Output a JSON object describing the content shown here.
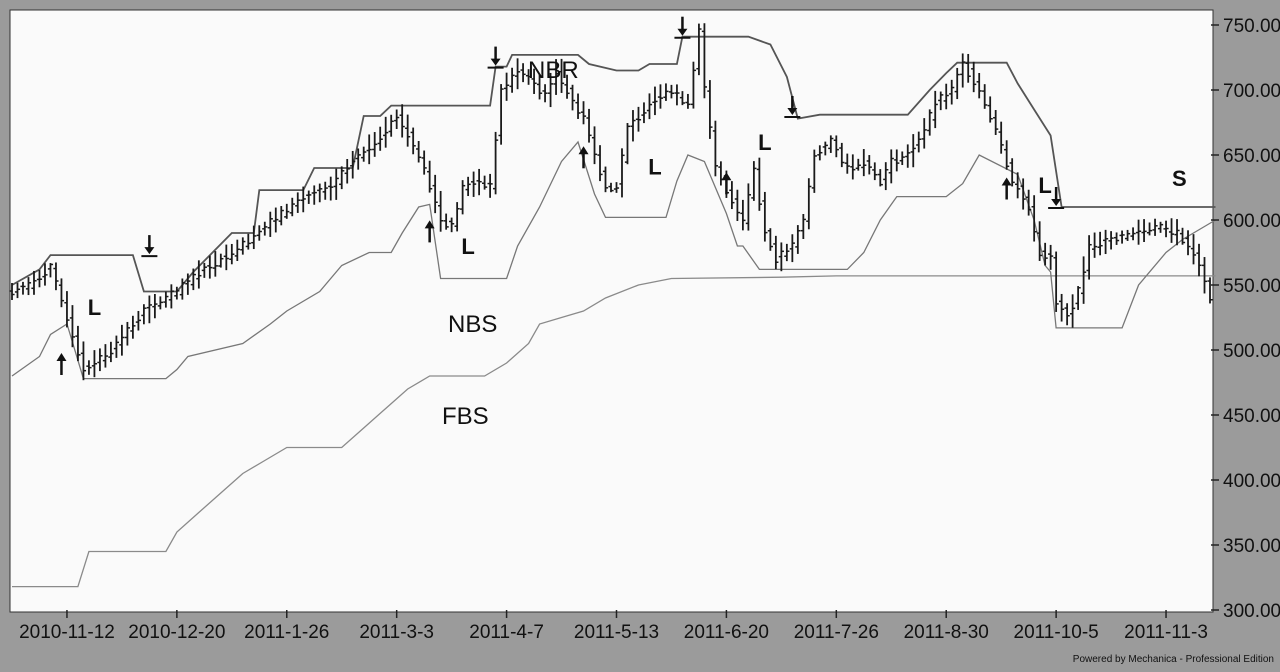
{
  "chart_data": {
    "type": "line",
    "title": "",
    "xlabel": "",
    "ylabel": "",
    "ylim": [
      300,
      760
    ],
    "y_ticks": [
      "750.00",
      "700.00",
      "650.00",
      "600.00",
      "550.00",
      "500.00",
      "450.00",
      "400.00",
      "350.00",
      "300.00"
    ],
    "y_tick_values": [
      750,
      700,
      650,
      600,
      550,
      500,
      450,
      400,
      350,
      300
    ],
    "x_tick_labels": [
      "2010-11-12",
      "2010-12-20",
      "2011-1-26",
      "2011-3-3",
      "2011-4-7",
      "2011-5-13",
      "2011-6-20",
      "2011-7-26",
      "2011-8-30",
      "2011-10-5",
      "2011-11-3"
    ],
    "x_tick_index": [
      10,
      30,
      50,
      70,
      90,
      110,
      130,
      150,
      170,
      190,
      210
    ],
    "n_bars": 219,
    "grid": false,
    "colors": {
      "background": "#9b9b9b",
      "plot": "#fafafa",
      "price": "#1a1a1a",
      "nbr": "#555555",
      "nbs": "#777777",
      "fbs": "#8a8a8a",
      "text": "#111111"
    },
    "price_anchors": [
      [
        0,
        545
      ],
      [
        3,
        550
      ],
      [
        7,
        563
      ],
      [
        10,
        525
      ],
      [
        13,
        485
      ],
      [
        18,
        500
      ],
      [
        24,
        530
      ],
      [
        30,
        545
      ],
      [
        34,
        560
      ],
      [
        40,
        575
      ],
      [
        46,
        595
      ],
      [
        52,
        615
      ],
      [
        58,
        625
      ],
      [
        62,
        645
      ],
      [
        66,
        660
      ],
      [
        70,
        680
      ],
      [
        72,
        665
      ],
      [
        75,
        640
      ],
      [
        78,
        600
      ],
      [
        80,
        595
      ],
      [
        82,
        625
      ],
      [
        85,
        630
      ],
      [
        87,
        625
      ],
      [
        89,
        700
      ],
      [
        92,
        715
      ],
      [
        95,
        705
      ],
      [
        97,
        695
      ],
      [
        99,
        715
      ],
      [
        102,
        690
      ],
      [
        104,
        680
      ],
      [
        106,
        650
      ],
      [
        108,
        625
      ],
      [
        110,
        625
      ],
      [
        112,
        670
      ],
      [
        116,
        690
      ],
      [
        119,
        700
      ],
      [
        123,
        690
      ],
      [
        125,
        745
      ],
      [
        126,
        700
      ],
      [
        128,
        640
      ],
      [
        131,
        615
      ],
      [
        133,
        600
      ],
      [
        135,
        640
      ],
      [
        137,
        590
      ],
      [
        139,
        570
      ],
      [
        142,
        580
      ],
      [
        144,
        600
      ],
      [
        146,
        650
      ],
      [
        149,
        660
      ],
      [
        152,
        640
      ],
      [
        155,
        645
      ],
      [
        158,
        630
      ],
      [
        160,
        645
      ],
      [
        163,
        650
      ],
      [
        166,
        670
      ],
      [
        168,
        690
      ],
      [
        171,
        700
      ],
      [
        173,
        720
      ],
      [
        176,
        700
      ],
      [
        179,
        670
      ],
      [
        182,
        630
      ],
      [
        185,
        610
      ],
      [
        187,
        575
      ],
      [
        189,
        570
      ],
      [
        190,
        535
      ],
      [
        192,
        525
      ],
      [
        194,
        545
      ],
      [
        196,
        580
      ],
      [
        200,
        585
      ],
      [
        204,
        590
      ],
      [
        208,
        595
      ],
      [
        212,
        590
      ],
      [
        215,
        575
      ],
      [
        218,
        540
      ]
    ],
    "series": [
      {
        "name": "NBR",
        "values": [
          [
            0,
            550
          ],
          [
            5,
            562
          ],
          [
            7,
            573
          ],
          [
            22,
            573
          ],
          [
            24,
            545
          ],
          [
            30,
            545
          ],
          [
            33,
            560
          ],
          [
            40,
            590
          ],
          [
            44,
            590
          ],
          [
            45,
            623
          ],
          [
            53,
            623
          ],
          [
            55,
            640
          ],
          [
            62,
            640
          ],
          [
            64,
            680
          ],
          [
            67,
            680
          ],
          [
            69,
            688
          ],
          [
            87,
            688
          ],
          [
            88,
            718
          ],
          [
            90,
            718
          ],
          [
            91,
            727
          ],
          [
            103,
            727
          ],
          [
            105,
            720
          ],
          [
            110,
            715
          ],
          [
            114,
            715
          ],
          [
            116,
            720
          ],
          [
            121,
            720
          ],
          [
            122,
            741
          ],
          [
            134,
            741
          ],
          [
            138,
            735
          ],
          [
            141,
            710
          ],
          [
            143,
            678
          ],
          [
            147,
            681
          ],
          [
            157,
            681
          ],
          [
            163,
            681
          ],
          [
            167,
            700
          ],
          [
            170,
            713
          ],
          [
            172,
            721
          ],
          [
            181,
            721
          ],
          [
            183,
            705
          ],
          [
            186,
            685
          ],
          [
            189,
            665
          ],
          [
            191,
            610
          ],
          [
            200,
            610
          ],
          [
            219,
            610
          ]
        ]
      },
      {
        "name": "NBS",
        "values": [
          [
            0,
            480
          ],
          [
            5,
            495
          ],
          [
            7,
            512
          ],
          [
            10,
            520
          ],
          [
            13,
            478
          ],
          [
            28,
            478
          ],
          [
            30,
            485
          ],
          [
            32,
            495
          ],
          [
            42,
            505
          ],
          [
            47,
            520
          ],
          [
            50,
            530
          ],
          [
            56,
            545
          ],
          [
            60,
            565
          ],
          [
            65,
            575
          ],
          [
            69,
            575
          ],
          [
            71,
            590
          ],
          [
            74,
            610
          ],
          [
            76,
            612
          ],
          [
            78,
            555
          ],
          [
            90,
            555
          ],
          [
            92,
            580
          ],
          [
            96,
            610
          ],
          [
            100,
            645
          ],
          [
            103,
            660
          ],
          [
            106,
            620
          ],
          [
            108,
            602
          ],
          [
            119,
            602
          ],
          [
            121,
            630
          ],
          [
            123,
            650
          ],
          [
            126,
            645
          ],
          [
            130,
            605
          ],
          [
            132,
            580
          ],
          [
            133,
            580
          ],
          [
            136,
            562
          ],
          [
            152,
            562
          ],
          [
            155,
            575
          ],
          [
            158,
            600
          ],
          [
            161,
            618
          ],
          [
            170,
            618
          ],
          [
            173,
            628
          ],
          [
            176,
            650
          ],
          [
            183,
            635
          ],
          [
            186,
            600
          ],
          [
            188,
            565
          ],
          [
            189,
            560
          ],
          [
            190,
            517
          ],
          [
            202,
            517
          ],
          [
            205,
            550
          ],
          [
            210,
            575
          ],
          [
            213,
            585
          ],
          [
            219,
            600
          ]
        ]
      },
      {
        "name": "FBS",
        "values": [
          [
            0,
            425
          ],
          [
            5,
            465
          ],
          [
            8,
            495
          ],
          [
            15,
            475
          ],
          [
            30,
            475
          ],
          [
            33,
            483
          ],
          [
            37,
            490
          ],
          [
            42,
            510
          ],
          [
            48,
            540
          ],
          [
            55,
            560
          ],
          [
            60,
            575
          ],
          [
            68,
            575
          ],
          [
            72,
            540
          ],
          [
            75,
            500
          ],
          [
            78,
            475
          ],
          [
            92,
            475
          ],
          [
            95,
            510
          ],
          [
            98,
            535
          ],
          [
            104,
            545
          ],
          [
            108,
            550
          ],
          [
            112,
            555
          ],
          [
            118,
            556
          ],
          [
            128,
            557
          ],
          [
            150,
            558
          ],
          [
            185,
            558
          ],
          [
            219,
            558
          ]
        ]
      }
    ]
  },
  "fbs_steps": [
    [
      0,
      318
    ],
    [
      12,
      318
    ],
    [
      14,
      345
    ],
    [
      28,
      345
    ],
    [
      30,
      360
    ],
    [
      34,
      375
    ],
    [
      38,
      390
    ],
    [
      42,
      405
    ],
    [
      46,
      415
    ],
    [
      50,
      425
    ],
    [
      60,
      425
    ],
    [
      64,
      440
    ],
    [
      68,
      455
    ],
    [
      72,
      470
    ],
    [
      76,
      480
    ],
    [
      86,
      480
    ],
    [
      90,
      490
    ],
    [
      94,
      505
    ],
    [
      96,
      520
    ],
    [
      100,
      525
    ],
    [
      104,
      530
    ],
    [
      108,
      540
    ],
    [
      114,
      550
    ],
    [
      120,
      555
    ],
    [
      140,
      556
    ],
    [
      150,
      557
    ],
    [
      219,
      557
    ]
  ],
  "annotations": {
    "nbr": "NBR",
    "nbs": "NBS",
    "fbs": "FBS",
    "s": "S",
    "l": "L",
    "credit": "Powered by Mechanica - Professional Edition"
  },
  "markers": {
    "long_labels": [
      [
        15,
        533
      ],
      [
        83,
        580
      ],
      [
        117,
        641
      ],
      [
        137,
        660
      ],
      [
        188,
        627
      ]
    ],
    "entry_arrows": [
      [
        9,
        490
      ],
      [
        76,
        592
      ],
      [
        104,
        649
      ],
      [
        130,
        629
      ],
      [
        181,
        625
      ]
    ],
    "exit_arrows": [
      [
        25,
        573
      ],
      [
        88,
        718
      ],
      [
        122,
        741
      ],
      [
        142,
        680
      ],
      [
        190,
        610
      ]
    ]
  }
}
